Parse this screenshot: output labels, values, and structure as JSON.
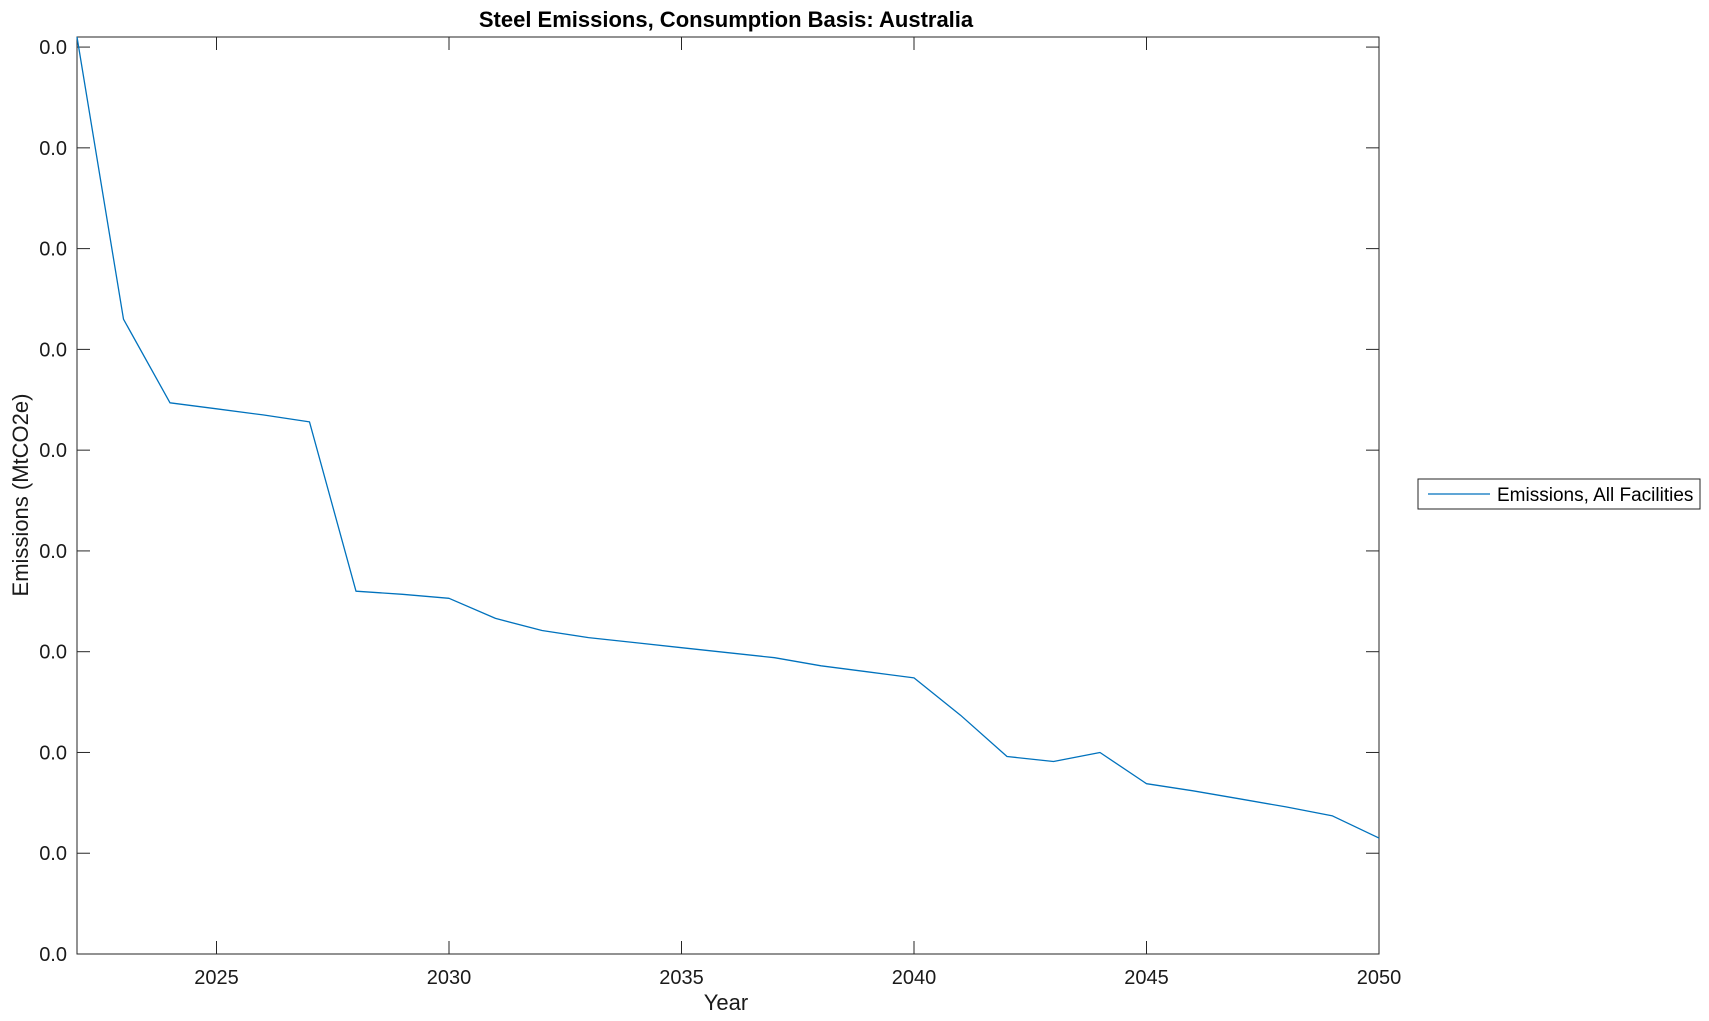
{
  "chart_data": {
    "type": "line",
    "title": "Steel Emissions, Consumption Basis: Australia",
    "xlabel": "Year",
    "ylabel": "Emissions (MtCO2e)",
    "xlim": [
      2022,
      2050
    ],
    "ylim": [
      0,
      9.1
    ],
    "x_ticks": [
      2025,
      2030,
      2035,
      2040,
      2045,
      2050
    ],
    "y_ticks": [
      0,
      1,
      2,
      3,
      4,
      5,
      6,
      7,
      8,
      9
    ],
    "y_tick_labels": [
      "0.0",
      "0.0",
      "0.0",
      "0.0",
      "0.0",
      "0.0",
      "0.0",
      "0.0",
      "0.0",
      "0.0"
    ],
    "grid": false,
    "legend_position": "outside-right",
    "series": [
      {
        "name": "Emissions, All Facilities",
        "color": "#0072BD",
        "x": [
          2022,
          2023,
          2024,
          2025,
          2026,
          2027,
          2028,
          2029,
          2030,
          2031,
          2032,
          2033,
          2034,
          2035,
          2036,
          2037,
          2038,
          2039,
          2040,
          2041,
          2042,
          2043,
          2044,
          2045,
          2046,
          2047,
          2048,
          2049,
          2050
        ],
        "y": [
          9.1,
          6.3,
          5.47,
          5.41,
          5.35,
          5.28,
          3.6,
          3.57,
          3.53,
          3.33,
          3.21,
          3.14,
          3.09,
          3.04,
          2.99,
          2.94,
          2.86,
          2.8,
          2.74,
          2.37,
          1.96,
          1.91,
          2.0,
          1.69,
          1.62,
          1.54,
          1.46,
          1.37,
          1.15
        ]
      }
    ]
  }
}
